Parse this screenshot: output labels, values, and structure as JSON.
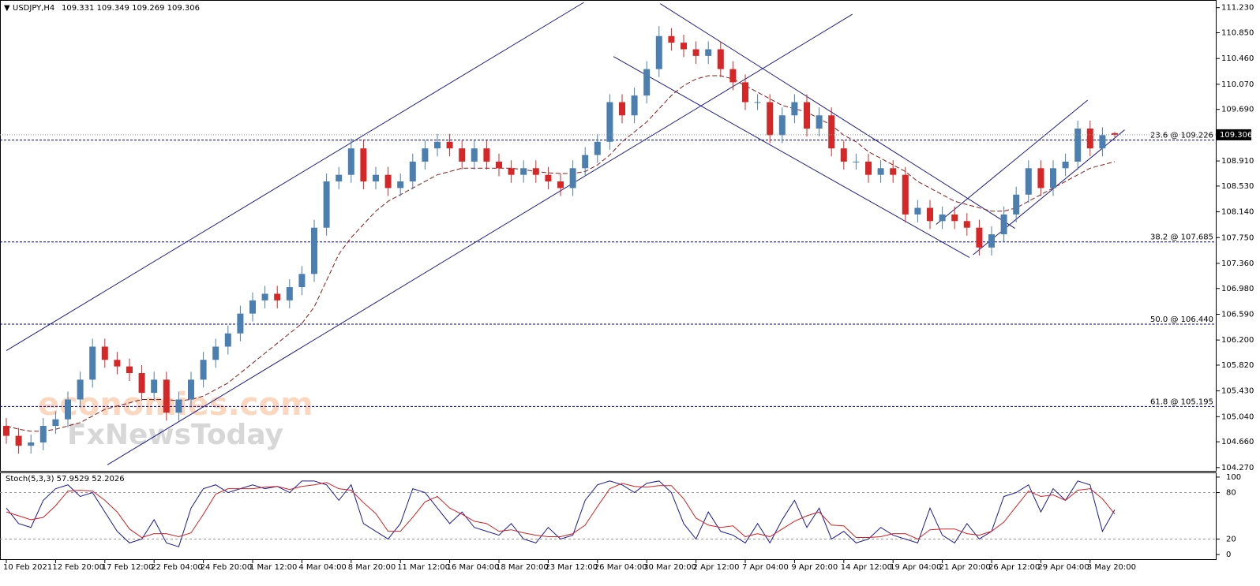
{
  "chart_data": [
    {
      "type": "candlestick",
      "title": "USDJPY,H4",
      "watermarks": [
        "economies.com",
        "FxNewsToday"
      ],
      "categories": [
        "10 Feb 2021",
        null,
        null,
        null,
        "12 Feb 20:00",
        null,
        null,
        null,
        "17 Feb 12:00",
        null,
        null,
        null,
        "22 Feb 04:00",
        null,
        null,
        null,
        "24 Feb 20:00",
        null,
        null,
        null,
        "1 Mar 12:00",
        null,
        null,
        null,
        "4 Mar 04:00",
        null,
        null,
        null,
        "8 Mar 20:00",
        null,
        null,
        null,
        "11 Mar 12:00",
        null,
        null,
        null,
        "16 Mar 04:00",
        null,
        null,
        null,
        "18 Mar 20:00",
        null,
        null,
        null,
        "23 Mar 12:00",
        null,
        null,
        null,
        "26 Mar 04:00",
        null,
        null,
        null,
        "30 Mar 20:00",
        null,
        null,
        null,
        "2 Apr 12:00",
        null,
        null,
        null,
        "7 Apr 04:00",
        null,
        null,
        null,
        "9 Apr 20:00",
        null,
        null,
        null,
        "14 Apr 12:00",
        null,
        null,
        null,
        "19 Apr 04:00",
        null,
        null,
        null,
        "21 Apr 20:00",
        null,
        null,
        null,
        "26 Apr 12:00",
        null,
        null,
        null,
        "29 Apr 04:00",
        null,
        null,
        null,
        "3 May 20:00",
        null,
        null
      ],
      "open": [
        104.9,
        104.75,
        104.6,
        104.65,
        104.9,
        105.0,
        105.3,
        105.6,
        106.1,
        105.9,
        105.8,
        105.7,
        105.4,
        105.6,
        105.1,
        105.3,
        105.6,
        105.9,
        106.1,
        106.3,
        106.6,
        106.8,
        106.9,
        106.8,
        107.0,
        107.2,
        107.9,
        108.6,
        108.7,
        109.1,
        108.6,
        108.7,
        108.5,
        108.6,
        108.9,
        109.1,
        109.2,
        109.1,
        108.9,
        109.1,
        108.9,
        108.8,
        108.7,
        108.8,
        108.7,
        108.6,
        108.5,
        108.8,
        109.0,
        109.2,
        109.8,
        109.6,
        109.9,
        110.3,
        110.8,
        110.7,
        110.6,
        110.5,
        110.6,
        110.3,
        110.1,
        109.8,
        109.8,
        109.3,
        109.6,
        109.8,
        109.4,
        109.6,
        109.1,
        108.9,
        108.9,
        108.7,
        108.8,
        108.7,
        108.1,
        108.2,
        108.0,
        108.1,
        108.0,
        107.9,
        107.6,
        107.8,
        108.1,
        108.4,
        108.8,
        108.5,
        108.8,
        108.9,
        109.4,
        109.1,
        109.331
      ],
      "high": [
        105.02,
        104.87,
        104.77,
        105.02,
        105.12,
        105.42,
        105.72,
        106.22,
        106.22,
        106.02,
        105.92,
        105.82,
        105.72,
        105.72,
        105.42,
        105.72,
        106.02,
        106.22,
        106.42,
        106.72,
        106.92,
        107.02,
        107.02,
        107.12,
        107.32,
        108.02,
        108.72,
        108.82,
        109.25,
        109.22,
        108.82,
        108.82,
        108.72,
        109.02,
        109.22,
        109.32,
        109.32,
        109.22,
        109.22,
        109.22,
        109.02,
        108.92,
        108.92,
        108.92,
        108.82,
        108.72,
        108.92,
        109.12,
        109.32,
        109.92,
        109.92,
        110.02,
        110.42,
        110.95,
        110.92,
        110.82,
        110.72,
        110.72,
        110.72,
        110.42,
        110.22,
        109.92,
        109.92,
        109.72,
        109.92,
        109.92,
        109.72,
        109.72,
        109.22,
        109.02,
        109.02,
        108.92,
        108.92,
        108.82,
        108.32,
        108.32,
        108.22,
        108.22,
        108.12,
        108.02,
        107.92,
        108.22,
        108.52,
        108.92,
        108.92,
        108.92,
        109.02,
        109.52,
        109.52,
        109.42,
        109.349
      ],
      "low": [
        104.63,
        104.48,
        104.48,
        104.53,
        104.78,
        104.88,
        105.18,
        105.48,
        105.78,
        105.68,
        105.58,
        105.28,
        105.28,
        104.98,
        104.98,
        105.18,
        105.48,
        105.78,
        105.98,
        106.18,
        106.48,
        106.68,
        106.68,
        106.68,
        106.88,
        107.08,
        107.78,
        108.48,
        108.58,
        108.48,
        108.48,
        108.38,
        108.38,
        108.48,
        108.78,
        108.98,
        108.98,
        108.78,
        108.78,
        108.78,
        108.68,
        108.58,
        108.58,
        108.58,
        108.48,
        108.38,
        108.38,
        108.68,
        108.88,
        109.08,
        109.48,
        109.48,
        109.78,
        110.18,
        110.58,
        110.48,
        110.38,
        110.38,
        110.18,
        109.98,
        109.68,
        109.68,
        109.18,
        109.18,
        109.48,
        109.28,
        109.28,
        108.98,
        108.78,
        108.78,
        108.58,
        108.58,
        108.58,
        107.98,
        107.98,
        107.88,
        107.88,
        107.88,
        107.78,
        107.48,
        107.48,
        107.68,
        107.98,
        108.28,
        108.38,
        108.38,
        108.68,
        108.78,
        108.98,
        108.98,
        109.269
      ],
      "close": [
        104.75,
        104.6,
        104.65,
        104.9,
        105.0,
        105.3,
        105.6,
        106.1,
        105.9,
        105.8,
        105.7,
        105.4,
        105.6,
        105.1,
        105.3,
        105.6,
        105.9,
        106.1,
        106.3,
        106.6,
        106.8,
        106.9,
        106.8,
        107.0,
        107.2,
        107.9,
        108.6,
        108.7,
        109.1,
        108.6,
        108.7,
        108.5,
        108.6,
        108.9,
        109.1,
        109.2,
        109.1,
        108.9,
        109.1,
        108.9,
        108.8,
        108.7,
        108.8,
        108.7,
        108.6,
        108.5,
        108.8,
        109.0,
        109.2,
        109.8,
        109.6,
        109.9,
        110.3,
        110.8,
        110.7,
        110.6,
        110.5,
        110.6,
        110.3,
        110.1,
        109.8,
        109.8,
        109.3,
        109.6,
        109.8,
        109.4,
        109.6,
        109.1,
        108.9,
        108.9,
        108.7,
        108.8,
        108.7,
        108.1,
        108.2,
        108.0,
        108.1,
        108.0,
        107.9,
        107.6,
        107.8,
        108.1,
        108.4,
        108.8,
        108.5,
        108.8,
        108.9,
        109.4,
        109.1,
        109.3,
        109.306
      ],
      "up_color": "#4a7fb0",
      "down_color": "#d62728",
      "moving_average": [
        104.9,
        104.85,
        104.82,
        104.82,
        104.85,
        104.9,
        104.95,
        105.05,
        105.15,
        105.2,
        105.25,
        105.3,
        105.3,
        105.3,
        105.28,
        105.3,
        105.35,
        105.45,
        105.55,
        105.7,
        105.85,
        106.0,
        106.15,
        106.3,
        106.45,
        106.7,
        107.1,
        107.5,
        107.75,
        107.95,
        108.15,
        108.3,
        108.4,
        108.5,
        108.6,
        108.7,
        108.75,
        108.8,
        108.8,
        108.8,
        108.8,
        108.8,
        108.78,
        108.75,
        108.73,
        108.72,
        108.72,
        108.75,
        108.85,
        109.0,
        109.2,
        109.35,
        109.5,
        109.7,
        109.9,
        110.05,
        110.15,
        110.2,
        110.2,
        110.15,
        110.05,
        109.95,
        109.85,
        109.75,
        109.7,
        109.65,
        109.55,
        109.45,
        109.3,
        109.2,
        109.05,
        108.95,
        108.85,
        108.75,
        108.6,
        108.5,
        108.4,
        108.3,
        108.25,
        108.2,
        108.15,
        108.15,
        108.2,
        108.3,
        108.4,
        108.5,
        108.6,
        108.7,
        108.8,
        108.85,
        108.9
      ],
      "ma_color": "#8b1a1a",
      "trendlines": [
        {
          "x": [
            0,
            46.9
          ],
          "y": [
            106.04,
            111.31
          ]
        },
        {
          "x": [
            8.2,
            68.7
          ],
          "y": [
            104.31,
            111.13
          ]
        },
        {
          "x": [
            53.1,
            81.9
          ],
          "y": [
            111.29,
            107.89
          ]
        },
        {
          "x": [
            49.3,
            78.2
          ],
          "y": [
            110.49,
            107.45
          ]
        },
        {
          "x": [
            75.5,
            87.8
          ],
          "y": [
            107.95,
            109.83
          ]
        },
        {
          "x": [
            78.5,
            90.8
          ],
          "y": [
            107.49,
            109.38
          ]
        }
      ],
      "trend_color": "#1c1c8c",
      "levels": [
        {
          "value": 109.226,
          "label": "23.6 @ 109.226"
        },
        {
          "value": 107.685,
          "label": "38.2 @ 107.685"
        },
        {
          "value": 106.44,
          "label": "50.0 @ 106.440"
        },
        {
          "value": 105.195,
          "label": "61.8 @ 105.195"
        }
      ],
      "level_color": "#00008b",
      "ylim": [
        104.22,
        111.31
      ],
      "yticks": [
        {
          "value": 111.23,
          "label": "111.230"
        },
        {
          "value": 110.85,
          "label": "110.850"
        },
        {
          "value": 110.46,
          "label": "110.460"
        },
        {
          "value": 110.07,
          "label": "110.070"
        },
        {
          "value": 109.69,
          "label": "109.690"
        },
        {
          "value": 108.91,
          "label": "108.910"
        },
        {
          "value": 108.53,
          "label": "108.530"
        },
        {
          "value": 108.14,
          "label": "108.140"
        },
        {
          "value": 107.75,
          "label": "107.750"
        },
        {
          "value": 107.36,
          "label": "107.360"
        },
        {
          "value": 106.98,
          "label": "106.980"
        },
        {
          "value": 106.59,
          "label": "106.590"
        },
        {
          "value": 106.2,
          "label": "106.200"
        },
        {
          "value": 105.82,
          "label": "105.820"
        },
        {
          "value": 105.43,
          "label": "105.430"
        },
        {
          "value": 105.04,
          "label": "105.040"
        },
        {
          "value": 104.66,
          "label": "104.660"
        },
        {
          "value": 104.27,
          "label": "104.270"
        }
      ]
    },
    {
      "type": "line",
      "title": "Stoch(5,3,3)",
      "series": [
        {
          "color": "#1a1a9a",
          "values": [
            60,
            40,
            35,
            70,
            85,
            90,
            75,
            80,
            55,
            30,
            15,
            20,
            45,
            15,
            10,
            60,
            85,
            90,
            80,
            85,
            90,
            85,
            88,
            80,
            95,
            95,
            90,
            70,
            90,
            40,
            30,
            20,
            40,
            85,
            80,
            60,
            40,
            55,
            35,
            30,
            25,
            40,
            20,
            15,
            35,
            20,
            25,
            70,
            90,
            95,
            90,
            80,
            92,
            95,
            80,
            40,
            20,
            55,
            30,
            25,
            15,
            40,
            15,
            45,
            70,
            35,
            60,
            20,
            30,
            15,
            20,
            35,
            25,
            20,
            15,
            60,
            25,
            15,
            40,
            20,
            30,
            75,
            80,
            90,
            55,
            85,
            70,
            95,
            90,
            30,
            57.9529
          ]
        },
        {
          "color": "#d62020",
          "values": [
            55,
            50,
            45,
            48,
            63,
            82,
            83,
            82,
            70,
            55,
            33,
            22,
            27,
            27,
            23,
            28,
            52,
            78,
            85,
            85,
            85,
            87,
            88,
            84,
            88,
            90,
            93,
            85,
            83,
            67,
            53,
            30,
            30,
            48,
            68,
            75,
            60,
            52,
            43,
            40,
            30,
            32,
            28,
            25,
            23,
            23,
            27,
            38,
            62,
            85,
            92,
            88,
            87,
            89,
            89,
            72,
            47,
            38,
            35,
            37,
            23,
            27,
            23,
            33,
            43,
            50,
            55,
            38,
            37,
            22,
            22,
            23,
            27,
            27,
            20,
            32,
            33,
            33,
            27,
            25,
            30,
            42,
            62,
            82,
            75,
            77,
            70,
            83,
            85,
            72,
            52.2026
          ]
        }
      ],
      "levels": [
        20,
        80
      ],
      "ylim": [
        -7,
        105
      ],
      "yticks": [
        0,
        20,
        80,
        100
      ]
    }
  ]
}
